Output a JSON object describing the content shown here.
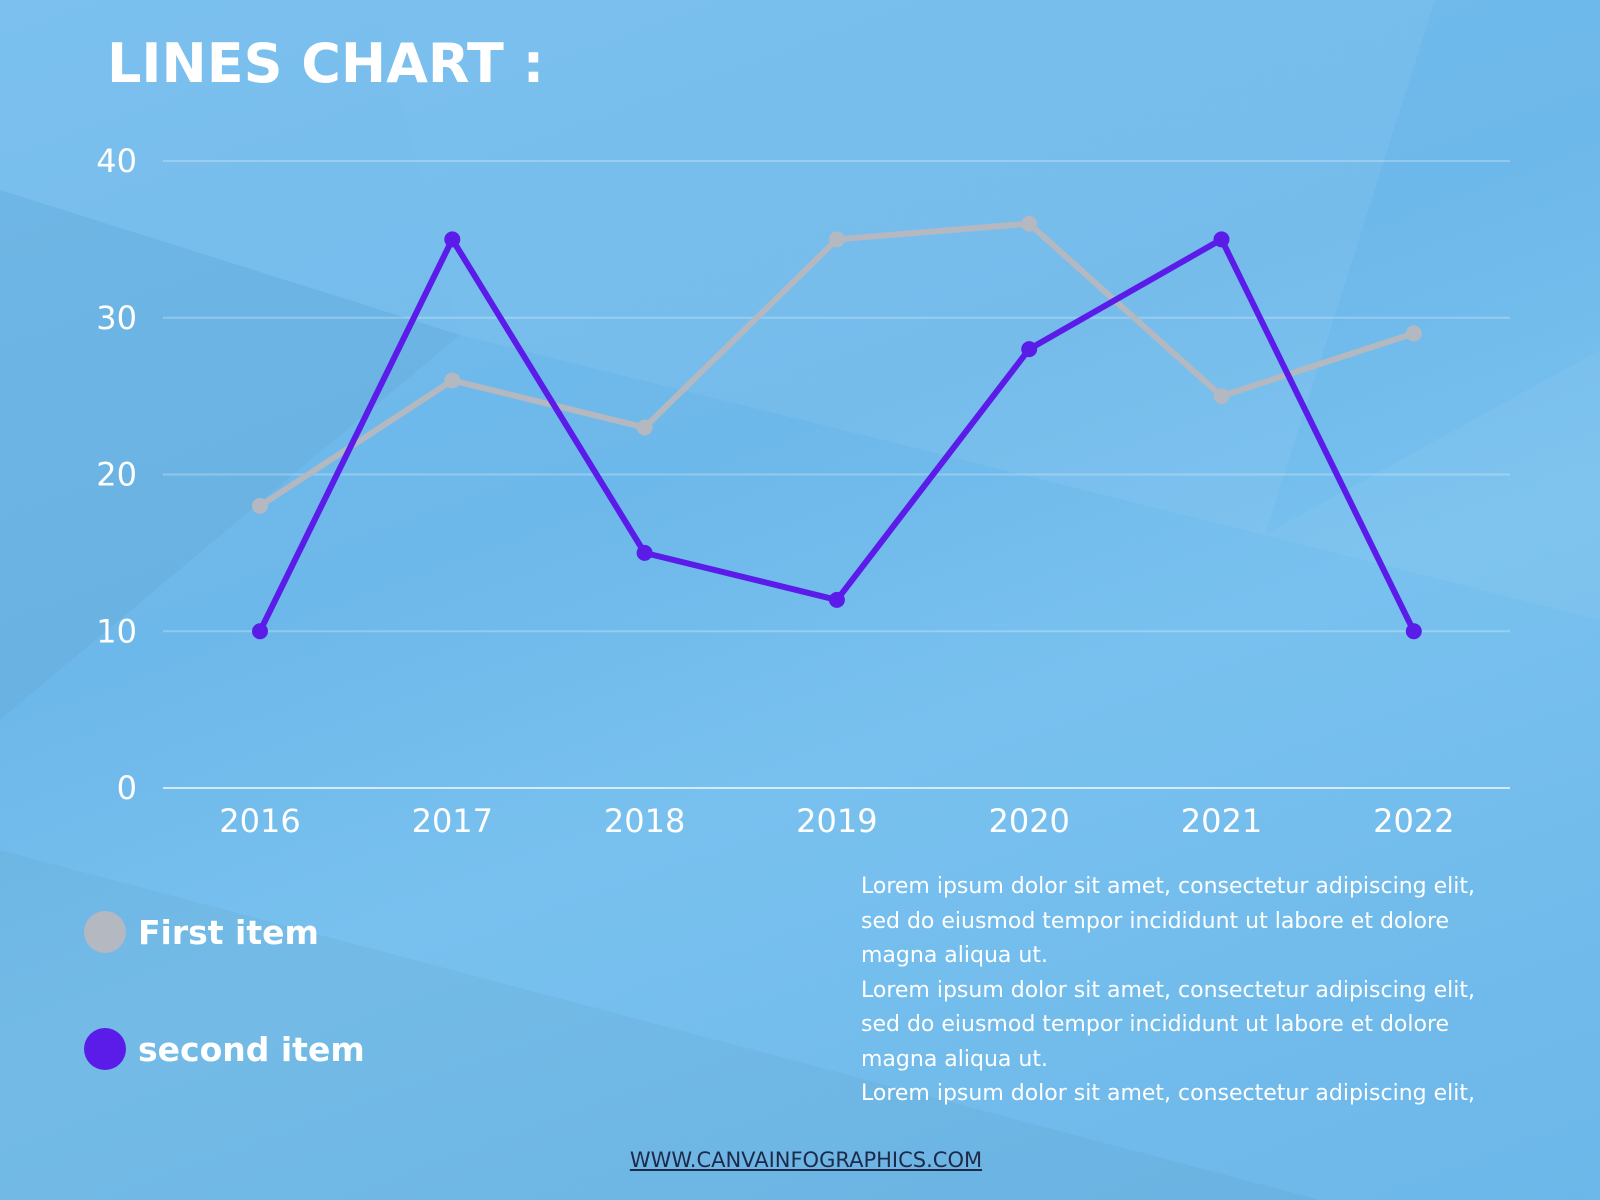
{
  "title": "LINES CHART :",
  "chart_data": {
    "type": "line",
    "categories": [
      "2016",
      "2017",
      "2018",
      "2019",
      "2020",
      "2021",
      "2022"
    ],
    "ylim": [
      0,
      40
    ],
    "yticks": [
      "0",
      "10",
      "20",
      "30",
      "40"
    ],
    "grid": true,
    "legend_placement": "bottom-left",
    "series": [
      {
        "name": "First item",
        "color": "#b4b8c0",
        "values": [
          18,
          26,
          23,
          35,
          36,
          25,
          29
        ]
      },
      {
        "name": "second item",
        "color": "#5b1be8",
        "values": [
          10,
          35,
          15,
          12,
          28,
          35,
          10
        ]
      }
    ]
  },
  "description_lines": [
    "Lorem ipsum dolor sit amet, consectetur adipiscing elit,",
    "sed do eiusmod tempor incididunt ut labore et dolore",
    "magna aliqua ut.",
    "Lorem ipsum dolor sit amet, consectetur adipiscing elit,",
    "sed do eiusmod tempor incididunt ut labore et dolore",
    "magna aliqua ut.",
    "Lorem ipsum dolor sit amet, consectetur adipiscing elit,"
  ],
  "footer": "WWW.CANVAINFOGRAPHICS.COM"
}
